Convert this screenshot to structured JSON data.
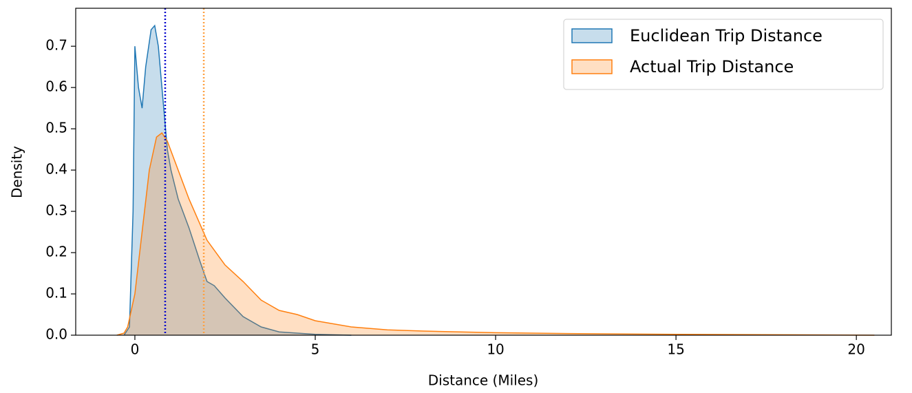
{
  "chart_data": {
    "type": "kde",
    "xlabel": "Distance (Miles)",
    "ylabel": "Density",
    "xlim": [
      -1.64,
      20.97
    ],
    "ylim": [
      0,
      0.792
    ],
    "xticks": [
      0,
      5,
      10,
      15,
      20
    ],
    "yticks": [
      {
        "value": 0,
        "label": "0.0"
      },
      0.1,
      0.2,
      0.3,
      0.4,
      0.5,
      0.6,
      0.7
    ],
    "legend": "upper right",
    "series": [
      {
        "name": "Euclidean Trip Distance",
        "color": "#1f77b4",
        "x": [
          -0.3,
          -0.15,
          -0.05,
          0,
          0.1,
          0.2,
          0.3,
          0.45,
          0.55,
          0.65,
          0.8,
          0.9,
          1.0,
          1.2,
          1.5,
          1.8,
          2.0,
          2.2,
          2.5,
          3.0,
          3.5,
          4.0,
          5.0,
          6.0
        ],
        "values": [
          0,
          0.02,
          0.3,
          0.7,
          0.6,
          0.55,
          0.65,
          0.74,
          0.75,
          0.7,
          0.55,
          0.45,
          0.4,
          0.33,
          0.26,
          0.18,
          0.13,
          0.12,
          0.09,
          0.045,
          0.02,
          0.008,
          0.002,
          0
        ]
      },
      {
        "name": "Actual Trip Distance",
        "color": "#ff7f0e",
        "x": [
          -0.5,
          -0.3,
          -0.2,
          0,
          0.2,
          0.4,
          0.6,
          0.75,
          0.9,
          1.2,
          1.5,
          2.0,
          2.5,
          3.0,
          3.5,
          4.0,
          4.5,
          5.0,
          6.0,
          7.0,
          8.0,
          10.0,
          12.0,
          15.0,
          18.0,
          20.5
        ],
        "values": [
          0,
          0.005,
          0.02,
          0.1,
          0.25,
          0.4,
          0.48,
          0.49,
          0.47,
          0.4,
          0.33,
          0.23,
          0.17,
          0.13,
          0.085,
          0.06,
          0.05,
          0.035,
          0.02,
          0.013,
          0.01,
          0.006,
          0.004,
          0.002,
          0.001,
          0
        ]
      }
    ],
    "vlines": [
      {
        "x": 0.84,
        "color": "#0000cd"
      },
      {
        "x": 1.91,
        "color": "#ffa040"
      }
    ]
  }
}
